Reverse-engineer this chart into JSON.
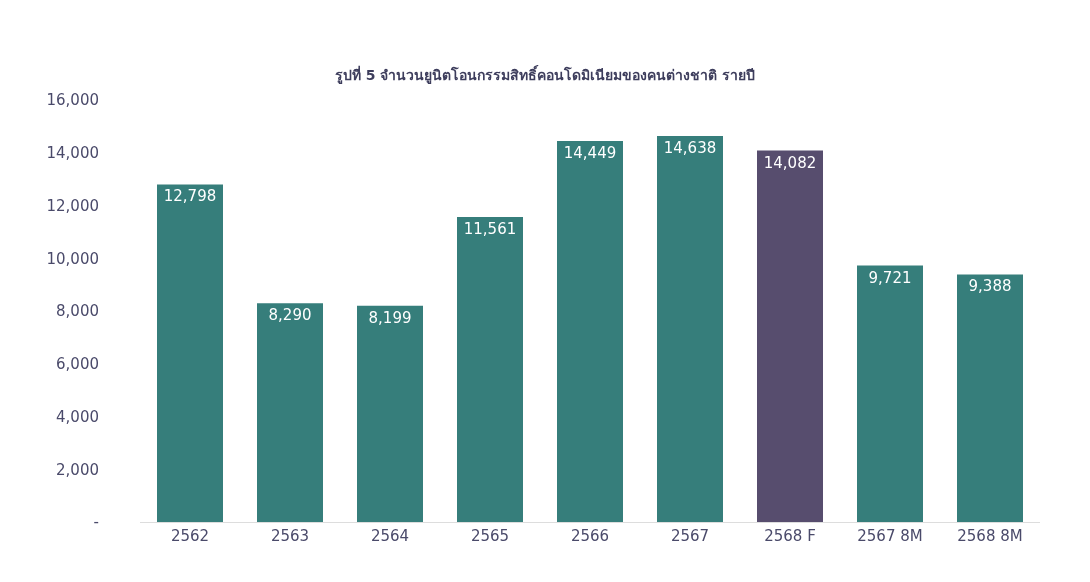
{
  "chart_data": {
    "type": "bar",
    "title": "รูปที่ 5 จำนวนยูนิตโอนกรรมสิทธิ์คอนโดมิเนียมของคนต่างชาติ รายปี",
    "categories": [
      "2562",
      "2563",
      "2564",
      "2565",
      "2566",
      "2567",
      "2568 F",
      "2567 8M",
      "2568 8M"
    ],
    "values": [
      12798,
      8290,
      8199,
      11561,
      14449,
      14638,
      14082,
      9721,
      9388
    ],
    "colors": [
      "#367e7b",
      "#367e7b",
      "#367e7b",
      "#367e7b",
      "#367e7b",
      "#367e7b",
      "#574d6e",
      "#367e7b",
      "#367e7b"
    ],
    "value_labels": [
      "12,798",
      "8,290",
      "8,199",
      "11,561",
      "14,449",
      "14,638",
      "14,082",
      "9,721",
      "9,388"
    ],
    "ylim": [
      0,
      16000
    ],
    "yticks": [
      {
        "value": 0,
        "label": "-"
      },
      {
        "value": 2000,
        "label": "2,000"
      },
      {
        "value": 4000,
        "label": "4,000"
      },
      {
        "value": 6000,
        "label": "6,000"
      },
      {
        "value": 8000,
        "label": "8,000"
      },
      {
        "value": 10000,
        "label": "10,000"
      },
      {
        "value": 12000,
        "label": "12,000"
      },
      {
        "value": 14000,
        "label": "14,000"
      },
      {
        "value": 16000,
        "label": "16,000"
      }
    ],
    "legend": false
  }
}
